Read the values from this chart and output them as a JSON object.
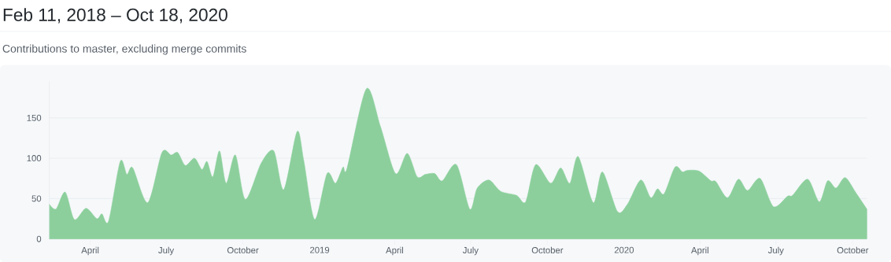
{
  "chart_data": {
    "type": "area",
    "title": "Feb 11, 2018 – Oct 18, 2020",
    "subtitle": "Contributions to master, excluding merge commits",
    "x": [
      "2018-02-11",
      "2018-02-19",
      "2018-03-02",
      "2018-03-13",
      "2018-03-27",
      "2018-04-09",
      "2018-04-15",
      "2018-04-23",
      "2018-05-07",
      "2018-05-15",
      "2018-05-22",
      "2018-06-09",
      "2018-06-26",
      "2018-07-07",
      "2018-07-15",
      "2018-07-24",
      "2018-08-04",
      "2018-08-13",
      "2018-08-19",
      "2018-08-26",
      "2018-09-03",
      "2018-09-11",
      "2018-09-22",
      "2018-10-04",
      "2018-10-23",
      "2018-11-07",
      "2018-11-19",
      "2018-12-05",
      "2018-12-13",
      "2018-12-26",
      "2019-01-10",
      "2019-01-20",
      "2019-01-29",
      "2019-02-03",
      "2019-02-26",
      "2019-03-15",
      "2019-04-02",
      "2019-04-16",
      "2019-04-28",
      "2019-05-08",
      "2019-05-19",
      "2019-05-28",
      "2019-06-14",
      "2019-06-30",
      "2019-07-09",
      "2019-07-23",
      "2019-08-06",
      "2019-08-25",
      "2019-09-05",
      "2019-09-17",
      "2019-10-05",
      "2019-10-17",
      "2019-10-28",
      "2019-11-07",
      "2019-11-25",
      "2019-12-06",
      "2019-12-24",
      "2020-01-05",
      "2020-01-21",
      "2020-02-02",
      "2020-02-10",
      "2020-02-18",
      "2020-03-02",
      "2020-03-11",
      "2020-03-17",
      "2020-03-31",
      "2020-04-14",
      "2020-04-20",
      "2020-05-04",
      "2020-05-17",
      "2020-05-28",
      "2020-06-12",
      "2020-06-28",
      "2020-07-15",
      "2020-07-21",
      "2020-08-08",
      "2020-08-22",
      "2020-09-01",
      "2020-09-11",
      "2020-09-22",
      "2020-10-05",
      "2020-10-18"
    ],
    "values": [
      43,
      37,
      58,
      24,
      38,
      25,
      31,
      22,
      96,
      80,
      88,
      45,
      107,
      104,
      107,
      91,
      100,
      86,
      96,
      77,
      109,
      69,
      104,
      49,
      94,
      109,
      61,
      133,
      97,
      24,
      81,
      69,
      89,
      88,
      186,
      139,
      81,
      106,
      77,
      80,
      81,
      72,
      92,
      37,
      63,
      73,
      59,
      54,
      46,
      92,
      69,
      88,
      69,
      102,
      45,
      83,
      34,
      43,
      73,
      51,
      62,
      56,
      89,
      83,
      85,
      84,
      72,
      71,
      51,
      74,
      60,
      75,
      40,
      53,
      54,
      74,
      46,
      72,
      63,
      76,
      57,
      37
    ],
    "color": "#8ccf9c",
    "xlim": [
      "2018-02-11",
      "2020-10-18"
    ],
    "xticks": [
      {
        "value": "2018-04-01",
        "label": "April"
      },
      {
        "value": "2018-07-01",
        "label": "July"
      },
      {
        "value": "2018-10-01",
        "label": "October"
      },
      {
        "value": "2019-01-01",
        "label": "2019"
      },
      {
        "value": "2019-04-01",
        "label": "April"
      },
      {
        "value": "2019-07-01",
        "label": "July"
      },
      {
        "value": "2019-10-01",
        "label": "October"
      },
      {
        "value": "2020-01-01",
        "label": "2020"
      },
      {
        "value": "2020-04-01",
        "label": "April"
      },
      {
        "value": "2020-07-01",
        "label": "July"
      },
      {
        "value": "2020-10-01",
        "label": "October"
      }
    ],
    "ylim": [
      0,
      195
    ],
    "yticks": [
      0,
      50,
      100,
      150
    ],
    "grid": "y"
  }
}
